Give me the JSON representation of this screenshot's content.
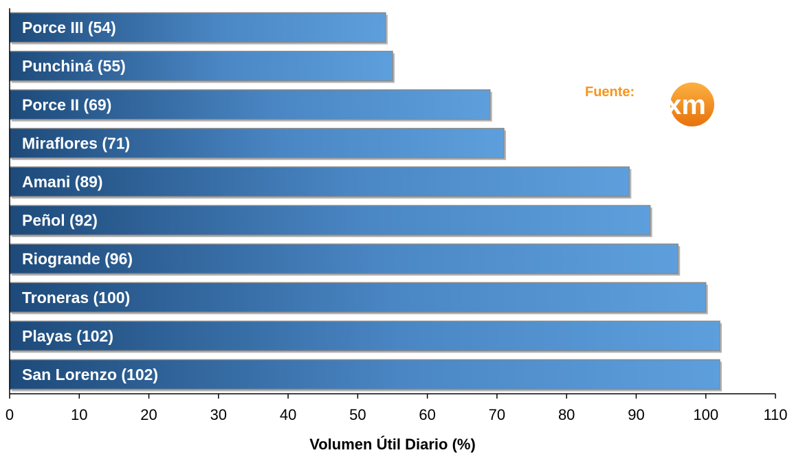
{
  "source": {
    "label": "Fuente:",
    "logo_text": "xm"
  },
  "colors": {
    "bar_dark": "#1d4a7a",
    "bar_light": "#5d9fdc",
    "bar_border": "#8a8a8a",
    "source_orange": "#f7941d"
  },
  "chart_data": {
    "type": "bar",
    "orientation": "horizontal",
    "categories": [
      "Porce III (54)",
      "Punchiná (55)",
      "Porce II (69)",
      "Miraflores (71)",
      "Amani (89)",
      "Peñol (92)",
      "Riogrande (96)",
      "Troneras (100)",
      "Playas (102)",
      "San Lorenzo (102)"
    ],
    "values": [
      54,
      55,
      69,
      71,
      89,
      92,
      96,
      100,
      102,
      102
    ],
    "xlabel": "Volumen Útil Diario (%)",
    "ylabel": "",
    "xlim": [
      0,
      110
    ],
    "xticks": [
      "0",
      "10",
      "20",
      "30",
      "40",
      "50",
      "60",
      "70",
      "80",
      "90",
      "100",
      "110"
    ],
    "grid": false,
    "legend": "none"
  }
}
